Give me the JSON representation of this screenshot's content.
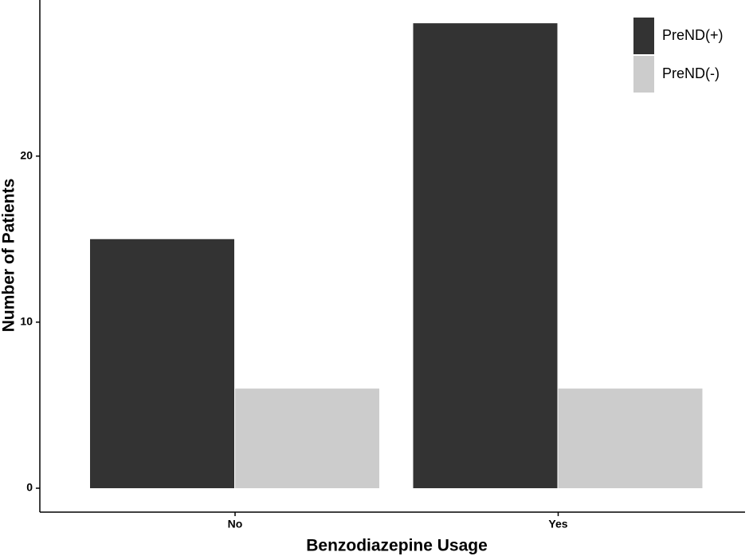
{
  "chart_data": {
    "type": "grouped-bar",
    "x_label": "Benzodiazepine Usage",
    "y_label": "Number of Patients",
    "categories": [
      "No",
      "Yes"
    ],
    "series": [
      {
        "name": "PreND(+)",
        "color": "#333333",
        "values": [
          15,
          28
        ]
      },
      {
        "name": "PreND(-)",
        "color": "#cccccc",
        "values": [
          6,
          6
        ]
      }
    ],
    "ylim": [
      -1.44,
      29.4
    ],
    "yticks": [
      0,
      10,
      20
    ],
    "grid": false,
    "legend": "top-right"
  }
}
